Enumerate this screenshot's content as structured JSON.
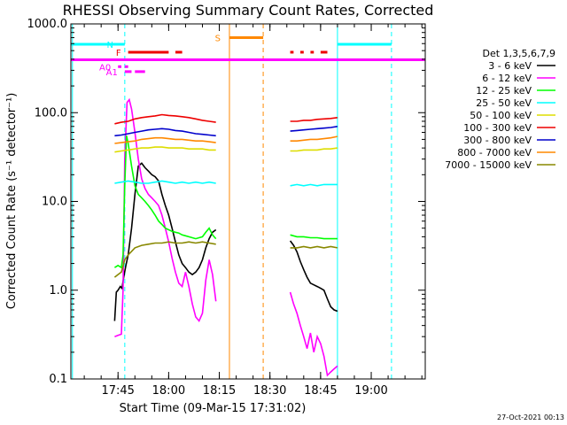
{
  "chart_data": {
    "type": "line",
    "title": "RHESSI Observing Summary Count Rates, Corrected",
    "xlabel": "Start Time (09-Mar-15 17:31:02)",
    "ylabel": "Corrected Count Rate (s⁻¹ detector⁻¹)",
    "y_scale": "log",
    "ylim": [
      0.1,
      1000.0
    ],
    "xlim": [
      "17:31:02",
      "19:16:00"
    ],
    "x_ticks": [
      "17:45",
      "18:00",
      "18:15",
      "18:30",
      "18:45",
      "19:00"
    ],
    "y_ticks": [
      "0.1",
      "1.0",
      "10.0",
      "100.0",
      "1000.0"
    ],
    "grid": false,
    "legend_title": "Det 1,3,5,6,7,9",
    "legend_position": "right",
    "footer": "27-Oct-2021 00:13",
    "series": [
      {
        "name": "3 - 6 keV",
        "color": "#000000",
        "segments": [
          {
            "x": [
              "17:44:00",
              "17:44:30",
              "17:45:00",
              "17:45:40",
              "17:46:10",
              "17:46:40",
              "17:47:20",
              "17:48:00",
              "17:49:00",
              "17:50:00",
              "17:51:00",
              "17:52:00",
              "17:53:00",
              "17:54:00",
              "17:55:00",
              "17:56:00",
              "17:57:00",
              "17:58:00",
              "17:59:00",
              "18:00:00",
              "18:01:00",
              "18:02:00",
              "18:03:00",
              "18:04:00",
              "18:05:00",
              "18:06:00",
              "18:07:00",
              "18:08:00",
              "18:09:00",
              "18:10:00",
              "18:11:00",
              "18:12:00",
              "18:13:00",
              "18:14:00"
            ],
            "y": [
              0.45,
              0.95,
              1.0,
              1.1,
              1.05,
              1.4,
              1.9,
              2.5,
              5,
              12,
              25,
              27,
              24,
              22,
              20,
              19,
              17,
              12,
              9,
              7,
              5,
              3.5,
              2.5,
              2,
              1.8,
              1.6,
              1.5,
              1.6,
              1.8,
              2.2,
              3,
              3.8,
              4.5,
              4.8
            ]
          },
          {
            "x": [
              "18:36:00",
              "18:37:00",
              "18:38:00",
              "18:39:00",
              "18:40:00",
              "18:41:00",
              "18:42:00",
              "18:43:00",
              "18:44:00",
              "18:45:00",
              "18:46:00",
              "18:47:00",
              "18:48:00",
              "18:49:00",
              "18:50:00"
            ],
            "y": [
              3.6,
              3.2,
              2.7,
              2.1,
              1.7,
              1.4,
              1.2,
              1.15,
              1.1,
              1.05,
              1.0,
              0.8,
              0.65,
              0.6,
              0.58
            ]
          }
        ]
      },
      {
        "name": "6 - 12 keV",
        "color": "#ff00ff",
        "segments": [
          {
            "x": [
              "17:44:00",
              "17:45:00",
              "17:46:00",
              "17:46:30",
              "17:47:00",
              "17:47:40",
              "17:48:20",
              "17:49:00",
              "17:50:00",
              "17:51:00",
              "17:52:00",
              "17:53:00",
              "17:54:00",
              "17:55:00",
              "17:56:00",
              "17:57:00",
              "17:58:00",
              "17:59:00",
              "18:00:00",
              "18:01:00",
              "18:02:00",
              "18:03:00",
              "18:04:00",
              "18:05:00",
              "18:06:00",
              "18:07:00",
              "18:08:00",
              "18:09:00",
              "18:10:00",
              "18:11:00",
              "18:12:00",
              "18:13:00",
              "18:14:00"
            ],
            "y": [
              0.3,
              0.31,
              0.32,
              1.0,
              30,
              130,
              140,
              110,
              60,
              30,
              18,
              14,
              12,
              11,
              10,
              9,
              7,
              5,
              3.5,
              2.3,
              1.6,
              1.2,
              1.1,
              1.6,
              1.1,
              0.7,
              0.5,
              0.45,
              0.55,
              1.3,
              2.2,
              1.5,
              0.75
            ]
          },
          {
            "x": [
              "18:36:00",
              "18:37:00",
              "18:38:00",
              "18:39:00",
              "18:40:00",
              "18:41:00",
              "18:42:00",
              "18:43:00",
              "18:44:00",
              "18:45:00",
              "18:46:00",
              "18:47:00",
              "18:48:00",
              "18:49:00",
              "18:50:00"
            ],
            "y": [
              0.95,
              0.7,
              0.55,
              0.4,
              0.3,
              0.22,
              0.33,
              0.2,
              0.3,
              0.25,
              0.18,
              0.11,
              0.12,
              0.13,
              0.14
            ]
          }
        ]
      },
      {
        "name": "12 - 25 keV",
        "color": "#00ff00",
        "segments": [
          {
            "x": [
              "17:44:00",
              "17:45:00",
              "17:46:00",
              "17:46:30",
              "17:47:00",
              "17:47:30",
              "17:48:00",
              "17:49:00",
              "17:50:00",
              "17:51:00",
              "17:52:00",
              "17:53:00",
              "17:54:00",
              "17:55:00",
              "17:56:00",
              "17:57:00",
              "17:58:00",
              "17:59:00",
              "18:00:00",
              "18:01:00",
              "18:02:00",
              "18:03:00",
              "18:04:00",
              "18:05:00",
              "18:06:00",
              "18:07:00",
              "18:08:00",
              "18:09:00",
              "18:10:00",
              "18:11:00",
              "18:12:00",
              "18:13:00",
              "18:14:00"
            ],
            "y": [
              1.8,
              1.9,
              1.8,
              2.5,
              15,
              55,
              45,
              25,
              15,
              12,
              11,
              10,
              9,
              8,
              7,
              6,
              5.5,
              5,
              4.8,
              4.6,
              4.5,
              4.4,
              4.2,
              4.1,
              4,
              3.9,
              3.8,
              3.9,
              4,
              4.5,
              5,
              4.2,
              3.8
            ]
          },
          {
            "x": [
              "18:36:00",
              "18:38:00",
              "18:40:00",
              "18:42:00",
              "18:44:00",
              "18:46:00",
              "18:48:00",
              "18:50:00"
            ],
            "y": [
              4.2,
              4.0,
              4.0,
              3.9,
              3.9,
              3.8,
              3.8,
              3.8
            ]
          }
        ]
      },
      {
        "name": "25 - 50 keV",
        "color": "#00ffff",
        "segments": [
          {
            "x": [
              "17:44:00",
              "17:46:00",
              "17:48:00",
              "17:50:00",
              "17:52:00",
              "17:54:00",
              "17:56:00",
              "17:58:00",
              "18:00:00",
              "18:02:00",
              "18:04:00",
              "18:06:00",
              "18:08:00",
              "18:10:00",
              "18:12:00",
              "18:14:00"
            ],
            "y": [
              16,
              16.5,
              17,
              16.5,
              16,
              16,
              16.5,
              17,
              16.5,
              16,
              16.5,
              16,
              16.5,
              16,
              16.5,
              16
            ]
          },
          {
            "x": [
              "18:36:00",
              "18:38:00",
              "18:40:00",
              "18:42:00",
              "18:44:00",
              "18:46:00",
              "18:48:00",
              "18:50:00"
            ],
            "y": [
              15,
              15.5,
              15,
              15.5,
              15,
              15.5,
              15.5,
              15.5
            ]
          }
        ]
      },
      {
        "name": "50 - 100 keV",
        "color": "#dddd00",
        "segments": [
          {
            "x": [
              "17:44:00",
              "17:46:00",
              "17:48:00",
              "17:50:00",
              "17:52:00",
              "17:54:00",
              "17:56:00",
              "17:58:00",
              "18:00:00",
              "18:02:00",
              "18:04:00",
              "18:06:00",
              "18:08:00",
              "18:10:00",
              "18:12:00",
              "18:14:00"
            ],
            "y": [
              36,
              37,
              38,
              39,
              40,
              40,
              41,
              41,
              40,
              40,
              40,
              39,
              39,
              39,
              38,
              38
            ]
          },
          {
            "x": [
              "18:36:00",
              "18:38:00",
              "18:40:00",
              "18:42:00",
              "18:44:00",
              "18:46:00",
              "18:48:00",
              "18:50:00"
            ],
            "y": [
              37,
              37,
              38,
              38,
              38,
              39,
              39,
              40
            ]
          }
        ]
      },
      {
        "name": "100 - 300 keV",
        "color": "#ee0000",
        "segments": [
          {
            "x": [
              "17:44:00",
              "17:46:00",
              "17:48:00",
              "17:50:00",
              "17:52:00",
              "17:54:00",
              "17:56:00",
              "17:58:00",
              "18:00:00",
              "18:02:00",
              "18:04:00",
              "18:06:00",
              "18:08:00",
              "18:10:00",
              "18:12:00",
              "18:14:00"
            ],
            "y": [
              75,
              78,
              80,
              85,
              88,
              90,
              92,
              95,
              93,
              92,
              90,
              88,
              85,
              82,
              80,
              78
            ]
          },
          {
            "x": [
              "18:36:00",
              "18:38:00",
              "18:40:00",
              "18:42:00",
              "18:44:00",
              "18:46:00",
              "18:48:00",
              "18:50:00"
            ],
            "y": [
              80,
              80,
              82,
              82,
              84,
              85,
              86,
              88
            ]
          }
        ]
      },
      {
        "name": "300 - 800 keV",
        "color": "#0000cc",
        "segments": [
          {
            "x": [
              "17:44:00",
              "17:46:00",
              "17:48:00",
              "17:50:00",
              "17:52:00",
              "17:54:00",
              "17:56:00",
              "17:58:00",
              "18:00:00",
              "18:02:00",
              "18:04:00",
              "18:06:00",
              "18:08:00",
              "18:10:00",
              "18:12:00",
              "18:14:00"
            ],
            "y": [
              55,
              56,
              58,
              60,
              62,
              64,
              65,
              66,
              65,
              63,
              62,
              60,
              58,
              57,
              56,
              55
            ]
          },
          {
            "x": [
              "18:36:00",
              "18:38:00",
              "18:40:00",
              "18:42:00",
              "18:44:00",
              "18:46:00",
              "18:48:00",
              "18:50:00"
            ],
            "y": [
              62,
              63,
              64,
              65,
              66,
              67,
              68,
              70
            ]
          }
        ]
      },
      {
        "name": "800 - 7000 keV",
        "color": "#ff8800",
        "segments": [
          {
            "x": [
              "17:44:00",
              "17:46:00",
              "17:48:00",
              "17:50:00",
              "17:52:00",
              "17:54:00",
              "17:56:00",
              "17:58:00",
              "18:00:00",
              "18:02:00",
              "18:04:00",
              "18:06:00",
              "18:08:00",
              "18:10:00",
              "18:12:00",
              "18:14:00"
            ],
            "y": [
              45,
              46,
              47,
              48,
              50,
              51,
              52,
              52,
              51,
              50,
              50,
              49,
              48,
              48,
              47,
              46
            ]
          },
          {
            "x": [
              "18:36:00",
              "18:38:00",
              "18:40:00",
              "18:42:00",
              "18:44:00",
              "18:46:00",
              "18:48:00",
              "18:50:00"
            ],
            "y": [
              48,
              48,
              49,
              50,
              50,
              51,
              52,
              54
            ]
          }
        ]
      },
      {
        "name": "7000 - 15000 keV",
        "color": "#888800",
        "segments": [
          {
            "x": [
              "17:44:00",
              "17:45:00",
              "17:46:00",
              "17:47:00",
              "17:48:00",
              "17:50:00",
              "17:52:00",
              "17:54:00",
              "17:56:00",
              "17:58:00",
              "18:00:00",
              "18:02:00",
              "18:04:00",
              "18:06:00",
              "18:08:00",
              "18:10:00",
              "18:12:00",
              "18:14:00"
            ],
            "y": [
              1.4,
              1.5,
              1.6,
              2.2,
              2.5,
              3,
              3.2,
              3.3,
              3.4,
              3.4,
              3.5,
              3.4,
              3.4,
              3.5,
              3.4,
              3.5,
              3.4,
              3.3
            ]
          },
          {
            "x": [
              "18:36:00",
              "18:38:00",
              "18:40:00",
              "18:42:00",
              "18:44:00",
              "18:46:00",
              "18:48:00",
              "18:50:00"
            ],
            "y": [
              3.0,
              3.0,
              3.1,
              3.0,
              3.1,
              3.0,
              3.1,
              3.0
            ]
          }
        ]
      }
    ],
    "flag_bars": [
      {
        "label": "N",
        "color": "#00ffff",
        "y": 590,
        "intervals": [
          [
            "17:31:02",
            "17:47:00"
          ],
          [
            "18:50:00",
            "19:06:00"
          ]
        ]
      },
      {
        "label": "S",
        "color": "#ff8800",
        "y": 700,
        "intervals": [
          [
            "18:18:00",
            "18:28:00"
          ]
        ]
      },
      {
        "label": "F",
        "color": "#ee0000",
        "y": 480,
        "intervals": [
          [
            "17:48:00",
            "18:00:00"
          ],
          [
            "18:02:00",
            "18:04:00"
          ],
          [
            "18:36:00",
            "18:37:00"
          ],
          [
            "18:39:00",
            "18:40:00"
          ],
          [
            "18:42:00",
            "18:43:00"
          ],
          [
            "18:45:00",
            "18:47:00"
          ]
        ]
      },
      {
        "label": "",
        "color": "#ff00ff",
        "y": 395,
        "intervals": [
          [
            "17:31:02",
            "19:16:00"
          ]
        ]
      },
      {
        "label": "A0",
        "color": "#ff00ff",
        "y": 330,
        "intervals": [
          [
            "17:45:00",
            "17:46:00"
          ],
          [
            "17:47:00",
            "17:48:00"
          ]
        ]
      },
      {
        "label": "A1",
        "color": "#ff00ff",
        "y": 290,
        "intervals": [
          [
            "17:47:00",
            "17:49:00"
          ],
          [
            "17:50:00",
            "17:53:00"
          ]
        ]
      }
    ],
    "vertical_markers": [
      {
        "x": "17:31:30",
        "color": "#00ffff",
        "style": "solid"
      },
      {
        "x": "17:47:00",
        "color": "#00ffff",
        "style": "dashed"
      },
      {
        "x": "18:18:00",
        "color": "#ff8800",
        "style": "solid"
      },
      {
        "x": "18:28:00",
        "color": "#ff8800",
        "style": "dashed"
      },
      {
        "x": "18:50:00",
        "color": "#00ffff",
        "style": "solid"
      },
      {
        "x": "19:06:00",
        "color": "#00ffff",
        "style": "dashed"
      }
    ]
  }
}
